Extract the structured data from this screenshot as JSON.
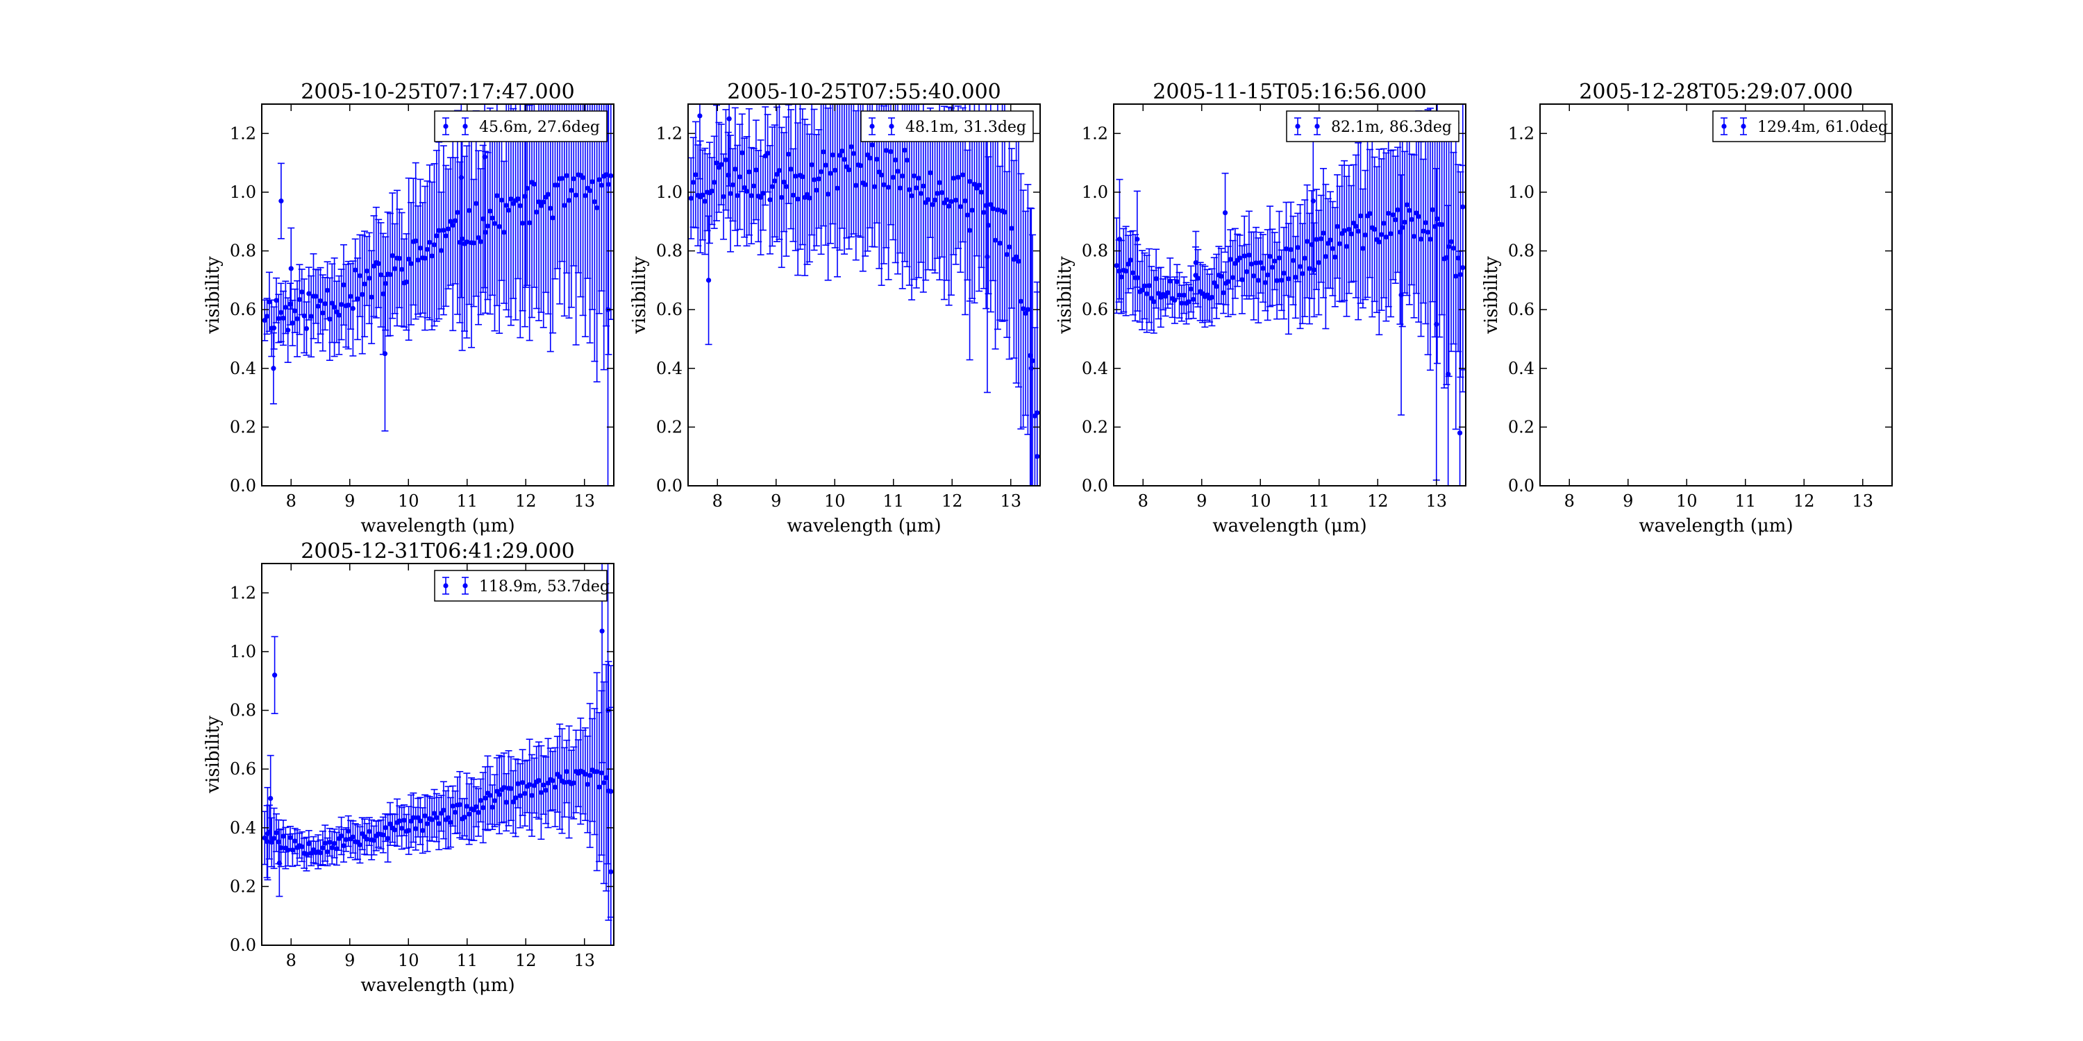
{
  "figure": {
    "background": "#ffffff",
    "series_color": "#0000ff"
  },
  "chart_data": [
    {
      "type": "scatter",
      "title": "2005-10-25T07:17:47.000",
      "xlabel": "wavelength (μm)",
      "ylabel": "visibility",
      "xlim": [
        7.5,
        13.5
      ],
      "ylim": [
        0,
        1.3
      ],
      "xticks": [
        8,
        9,
        10,
        11,
        12,
        13
      ],
      "yticks": [
        0.0,
        0.2,
        0.4,
        0.6,
        0.8,
        1.0,
        1.2
      ],
      "legend": {
        "label": "45.6m, 27.6deg",
        "placement": "top-right"
      },
      "error_bars": true,
      "trend": [
        [
          7.55,
          0.6
        ],
        [
          8.0,
          0.58
        ],
        [
          8.5,
          0.62
        ],
        [
          9.0,
          0.66
        ],
        [
          9.5,
          0.7
        ],
        [
          10.0,
          0.76
        ],
        [
          10.5,
          0.83
        ],
        [
          11.0,
          0.88
        ],
        [
          11.5,
          0.92
        ],
        [
          12.0,
          0.96
        ],
        [
          12.5,
          0.98
        ],
        [
          13.0,
          1.0
        ],
        [
          13.45,
          1.0
        ]
      ],
      "noise": 0.07,
      "err": [
        [
          7.55,
          0.08
        ],
        [
          9.0,
          0.14
        ],
        [
          10.0,
          0.22
        ],
        [
          11.0,
          0.3
        ],
        [
          12.0,
          0.36
        ],
        [
          13.0,
          0.4
        ],
        [
          13.45,
          0.55
        ]
      ],
      "seed": 11,
      "outliers": [
        [
          7.7,
          0.4
        ],
        [
          7.83,
          0.97
        ],
        [
          8.0,
          0.74
        ],
        [
          9.6,
          0.45
        ],
        [
          10.9,
          1.05
        ],
        [
          11.3,
          1.12
        ],
        [
          12.0,
          1.18
        ],
        [
          13.4,
          0.6
        ]
      ]
    },
    {
      "type": "scatter",
      "title": "2005-10-25T07:55:40.000",
      "xlabel": "wavelength (μm)",
      "ylabel": "visibility",
      "xlim": [
        7.5,
        13.5
      ],
      "ylim": [
        0,
        1.3
      ],
      "xticks": [
        8,
        9,
        10,
        11,
        12,
        13
      ],
      "yticks": [
        0.0,
        0.2,
        0.4,
        0.6,
        0.8,
        1.0,
        1.2
      ],
      "legend": {
        "label": "48.1m, 31.3deg",
        "placement": "top-right"
      },
      "error_bars": true,
      "trend": [
        [
          7.55,
          1.02
        ],
        [
          8.0,
          1.05
        ],
        [
          8.5,
          1.06
        ],
        [
          9.0,
          1.05
        ],
        [
          9.5,
          1.05
        ],
        [
          10.0,
          1.08
        ],
        [
          10.5,
          1.1
        ],
        [
          11.0,
          1.08
        ],
        [
          11.5,
          1.04
        ],
        [
          12.0,
          1.0
        ],
        [
          12.5,
          0.95
        ],
        [
          13.0,
          0.85
        ],
        [
          13.3,
          0.6
        ],
        [
          13.45,
          0.2
        ]
      ],
      "noise": 0.08,
      "err": [
        [
          7.55,
          0.15
        ],
        [
          9.0,
          0.18
        ],
        [
          10.0,
          0.25
        ],
        [
          11.0,
          0.3
        ],
        [
          12.0,
          0.3
        ],
        [
          13.0,
          0.35
        ],
        [
          13.45,
          0.4
        ]
      ],
      "seed": 23,
      "outliers": [
        [
          7.7,
          1.26
        ],
        [
          7.85,
          0.7
        ],
        [
          8.2,
          1.25
        ],
        [
          12.3,
          0.87
        ],
        [
          12.6,
          0.78
        ],
        [
          13.35,
          0.4
        ],
        [
          13.45,
          0.1
        ]
      ]
    },
    {
      "type": "scatter",
      "title": "2005-11-15T05:16:56.000",
      "xlabel": "wavelength (μm)",
      "ylabel": "visibility",
      "xlim": [
        7.5,
        13.5
      ],
      "ylim": [
        0,
        1.3
      ],
      "xticks": [
        8,
        9,
        10,
        11,
        12,
        13
      ],
      "yticks": [
        0.0,
        0.2,
        0.4,
        0.6,
        0.8,
        1.0,
        1.2
      ],
      "legend": {
        "label": "82.1m, 86.3deg",
        "placement": "top-right"
      },
      "error_bars": true,
      "trend": [
        [
          7.55,
          0.78
        ],
        [
          8.0,
          0.7
        ],
        [
          8.5,
          0.66
        ],
        [
          9.0,
          0.68
        ],
        [
          9.5,
          0.72
        ],
        [
          10.0,
          0.74
        ],
        [
          10.5,
          0.76
        ],
        [
          11.0,
          0.8
        ],
        [
          11.5,
          0.85
        ],
        [
          12.0,
          0.88
        ],
        [
          12.5,
          0.9
        ],
        [
          13.0,
          0.88
        ],
        [
          13.45,
          0.7
        ]
      ],
      "noise": 0.06,
      "err": [
        [
          7.55,
          0.15
        ],
        [
          8.5,
          0.06
        ],
        [
          9.5,
          0.1
        ],
        [
          10.5,
          0.15
        ],
        [
          11.5,
          0.22
        ],
        [
          12.5,
          0.3
        ],
        [
          13.45,
          0.45
        ]
      ],
      "seed": 37,
      "outliers": [
        [
          7.6,
          0.84
        ],
        [
          7.9,
          0.84
        ],
        [
          8.9,
          0.76
        ],
        [
          9.4,
          0.93
        ],
        [
          10.9,
          0.97
        ],
        [
          12.4,
          0.65
        ],
        [
          13.0,
          0.55
        ],
        [
          13.2,
          0.38
        ],
        [
          13.4,
          0.18
        ],
        [
          13.45,
          0.95
        ]
      ]
    },
    {
      "type": "scatter",
      "title": "2005-12-28T05:29:07.000",
      "xlabel": "wavelength (μm)",
      "ylabel": "visibility",
      "xlim": [
        7.5,
        13.5
      ],
      "ylim": [
        0,
        1.3
      ],
      "xticks": [
        8,
        9,
        10,
        11,
        12,
        13
      ],
      "yticks": [
        0.0,
        0.2,
        0.4,
        0.6,
        0.8,
        1.0,
        1.2
      ],
      "legend": {
        "label": "129.4m, 61.0deg",
        "placement": "top-right"
      },
      "error_bars": true,
      "trend": [],
      "noise": 0,
      "err": [],
      "seed": 1,
      "outliers": []
    },
    {
      "type": "scatter",
      "title": "2005-12-31T06:41:29.000",
      "xlabel": "wavelength (μm)",
      "ylabel": "visibility",
      "xlim": [
        7.5,
        13.5
      ],
      "ylim": [
        0,
        1.3
      ],
      "xticks": [
        8,
        9,
        10,
        11,
        12,
        13
      ],
      "yticks": [
        0.0,
        0.2,
        0.4,
        0.6,
        0.8,
        1.0,
        1.2
      ],
      "legend": {
        "label": "118.9m, 53.7deg",
        "placement": "top-right"
      },
      "error_bars": true,
      "trend": [
        [
          7.55,
          0.38
        ],
        [
          8.0,
          0.34
        ],
        [
          8.5,
          0.34
        ],
        [
          9.0,
          0.36
        ],
        [
          9.5,
          0.38
        ],
        [
          10.0,
          0.41
        ],
        [
          10.5,
          0.43
        ],
        [
          11.0,
          0.46
        ],
        [
          11.5,
          0.5
        ],
        [
          12.0,
          0.53
        ],
        [
          12.5,
          0.55
        ],
        [
          13.0,
          0.58
        ],
        [
          13.45,
          0.55
        ]
      ],
      "noise": 0.03,
      "err": [
        [
          7.55,
          0.12
        ],
        [
          8.0,
          0.05
        ],
        [
          9.0,
          0.05
        ],
        [
          10.0,
          0.07
        ],
        [
          11.0,
          0.09
        ],
        [
          12.0,
          0.12
        ],
        [
          13.0,
          0.16
        ],
        [
          13.45,
          0.4
        ]
      ],
      "seed": 53,
      "outliers": [
        [
          7.6,
          0.38
        ],
        [
          7.65,
          0.5
        ],
        [
          7.72,
          0.92
        ],
        [
          7.8,
          0.28
        ],
        [
          13.3,
          1.07
        ],
        [
          13.4,
          0.8
        ],
        [
          13.45,
          0.25
        ]
      ]
    }
  ]
}
